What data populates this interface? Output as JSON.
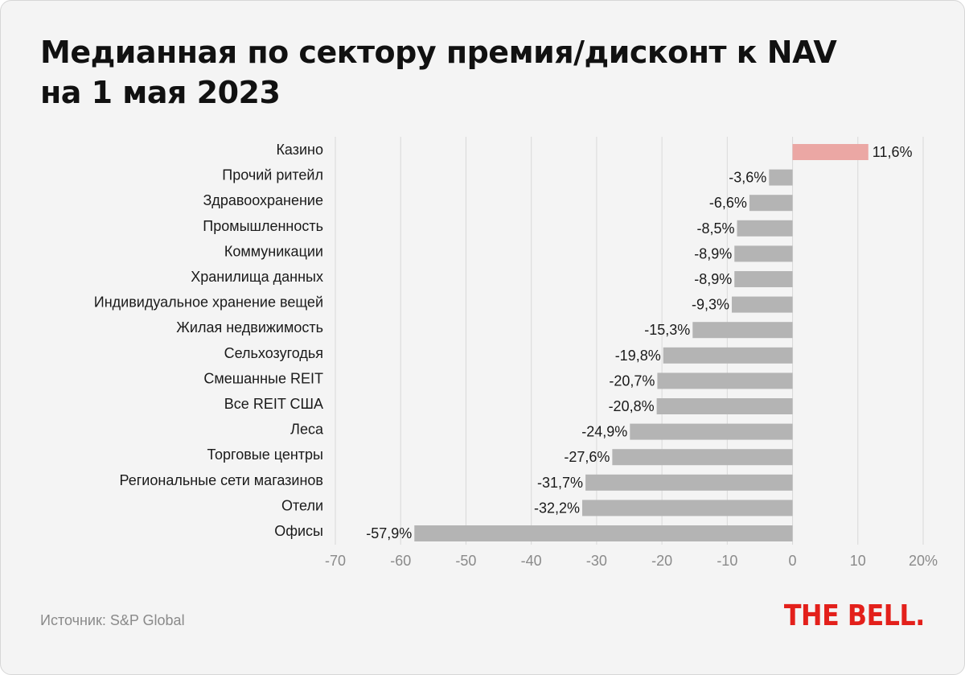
{
  "title_line1": "Медианная по сектору премия/дисконт к NAV",
  "title_line2": "на 1 мая 2023",
  "source": "Источник: S&P Global",
  "logo": "THE BELL.",
  "colors": {
    "background": "#f4f4f4",
    "positive": "#eba7a4",
    "negative": "#b4b4b4",
    "grid": "#d9d9d9",
    "logo": "#e3201b"
  },
  "chart_data": {
    "type": "bar",
    "orientation": "horizontal",
    "title": "Медианная по сектору премия/дисконт к NAV на 1 мая 2023",
    "categories": [
      "Казино",
      "Прочий ритейл",
      "Здравоохранение",
      "Промышленность",
      "Коммуникации",
      "Хранилища данных",
      "Индивидуальное хранение вещей",
      "Жилая недвижимость",
      "Сельхозугодья",
      "Смешанные REIT",
      "Все REIT США",
      "Леса",
      "Торговые центры",
      "Региональные сети магазинов",
      "Отели",
      "Офисы"
    ],
    "values": [
      11.6,
      -3.6,
      -6.6,
      -8.5,
      -8.9,
      -8.9,
      -9.3,
      -15.3,
      -19.8,
      -20.7,
      -20.8,
      -24.9,
      -27.6,
      -31.7,
      -32.2,
      -57.9
    ],
    "value_labels": [
      "11,6%",
      "-3,6%",
      "-6,6%",
      "-8,5%",
      "-8,9%",
      "-8,9%",
      "-9,3%",
      "-15,3%",
      "-19,8%",
      "-20,7%",
      "-20,8%",
      "-24,9%",
      "-27,6%",
      "-31,7%",
      "-32,2%",
      "-57,9%"
    ],
    "xlim": [
      -70,
      20
    ],
    "x_ticks": [
      -70,
      -60,
      -50,
      -40,
      -30,
      -20,
      -10,
      0,
      10,
      20
    ],
    "x_tick_labels": [
      "-70",
      "-60",
      "-50",
      "-40",
      "-30",
      "-20",
      "-10",
      "0",
      "10",
      "20%"
    ],
    "grid": true,
    "xlabel": "",
    "ylabel": ""
  }
}
